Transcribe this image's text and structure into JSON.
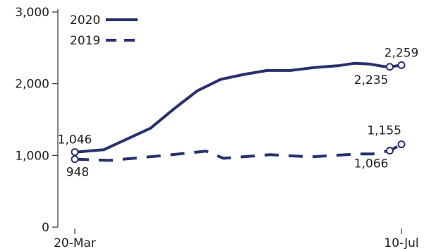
{
  "chart_data": {
    "type": "line",
    "title": "",
    "xlabel": "",
    "ylabel": "",
    "ylim": [
      0,
      3000
    ],
    "yticks": [
      {
        "value": 0,
        "label": "0"
      },
      {
        "value": 1000,
        "label": "1,000"
      },
      {
        "value": 2000,
        "label": "2,000"
      },
      {
        "value": 3000,
        "label": "3,000"
      }
    ],
    "xrange": [
      "2020-03-20",
      "2020-07-10"
    ],
    "xticks": [
      {
        "value": "2020-03-20",
        "label": "20-Mar"
      },
      {
        "value": "2020-07-10",
        "label": "10-Jul"
      }
    ],
    "grid": false,
    "legend": {
      "position": "top-left"
    },
    "colors": {
      "series": "#27316e",
      "text": "#222222",
      "axis": "#333333"
    },
    "series": [
      {
        "name": "2020",
        "style": "solid",
        "points": [
          {
            "x": "2020-03-20",
            "y": 1046
          },
          {
            "x": "2020-03-30",
            "y": 1080
          },
          {
            "x": "2020-04-15",
            "y": 1380
          },
          {
            "x": "2020-04-23",
            "y": 1650
          },
          {
            "x": "2020-05-01",
            "y": 1900
          },
          {
            "x": "2020-05-09",
            "y": 2060
          },
          {
            "x": "2020-05-17",
            "y": 2130
          },
          {
            "x": "2020-05-25",
            "y": 2185
          },
          {
            "x": "2020-06-02",
            "y": 2185
          },
          {
            "x": "2020-06-10",
            "y": 2225
          },
          {
            "x": "2020-06-18",
            "y": 2250
          },
          {
            "x": "2020-06-24",
            "y": 2285
          },
          {
            "x": "2020-06-29",
            "y": 2275
          },
          {
            "x": "2020-07-04",
            "y": 2240
          },
          {
            "x": "2020-07-06",
            "y": 2235
          },
          {
            "x": "2020-07-10",
            "y": 2259
          }
        ],
        "markers": [
          {
            "x": "2020-03-20",
            "y": 1046,
            "label": "1,046",
            "label_pos": "above"
          },
          {
            "x": "2020-07-06",
            "y": 2235,
            "label": "2,235",
            "label_pos": "below-left"
          },
          {
            "x": "2020-07-10",
            "y": 2259,
            "label": "2,259",
            "label_pos": "above"
          }
        ]
      },
      {
        "name": "2019",
        "style": "dashed",
        "points": [
          {
            "x": "2020-03-20",
            "y": 948
          },
          {
            "x": "2020-04-01",
            "y": 930
          },
          {
            "x": "2020-04-20",
            "y": 1000
          },
          {
            "x": "2020-05-04",
            "y": 1060
          },
          {
            "x": "2020-05-10",
            "y": 960
          },
          {
            "x": "2020-05-26",
            "y": 1010
          },
          {
            "x": "2020-06-09",
            "y": 980
          },
          {
            "x": "2020-06-25",
            "y": 1020
          },
          {
            "x": "2020-06-30",
            "y": 1020
          },
          {
            "x": "2020-07-06",
            "y": 1066
          },
          {
            "x": "2020-07-10",
            "y": 1155
          }
        ],
        "markers": [
          {
            "x": "2020-03-20",
            "y": 948,
            "label": "948",
            "label_pos": "below"
          },
          {
            "x": "2020-07-06",
            "y": 1066,
            "label": "1,066",
            "label_pos": "below-left"
          },
          {
            "x": "2020-07-10",
            "y": 1155,
            "label": "1,155",
            "label_pos": "above-left"
          }
        ]
      }
    ]
  }
}
